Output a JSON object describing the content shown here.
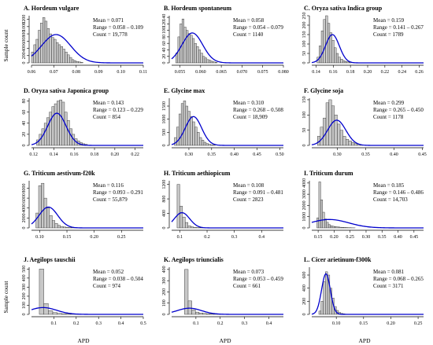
{
  "figure": {
    "ylabel": "Sample count",
    "xlabel": "APD",
    "bar_color": "#c8c8c8",
    "curve_color": "#0000cc"
  },
  "chart_data": [
    {
      "type": "histogram",
      "title": "A. Hordeum vulgare",
      "stats": [
        "Mean = 0.071",
        "Range = 0.058 – 0.109",
        "Count = 19,778"
      ],
      "xlim": [
        0.06,
        0.11
      ],
      "xticks": [
        0.06,
        0.07,
        0.08,
        0.09,
        0.1,
        0.11
      ],
      "xtick_labels": [
        "0.06",
        "0.07",
        "0.08",
        "0.09",
        "0.10",
        "0.11"
      ],
      "ylim": [
        0,
        1300
      ],
      "yticks": [
        0,
        200,
        400,
        600,
        800,
        1000,
        1200
      ],
      "ytick_labels": [
        "0",
        "200",
        "400",
        "600",
        "800",
        "1000",
        "1200"
      ],
      "bin_start": 0.059,
      "bin_width": 0.001,
      "values": [
        150,
        300,
        500,
        650,
        900,
        1100,
        1250,
        1150,
        950,
        800,
        700,
        650,
        560,
        500,
        450,
        380,
        300,
        220,
        150,
        90,
        60,
        40,
        25,
        15
      ],
      "fit": {
        "mean": 0.071,
        "sd": 0.0065,
        "peak": 780
      }
    },
    {
      "type": "histogram",
      "title": "B. Hordeum spontaneum",
      "stats": [
        "Mean = 0.058",
        "Range = 0.054 – 0.079",
        "Count = 1140"
      ],
      "xlim": [
        0.053,
        0.08
      ],
      "xticks": [
        0.055,
        0.06,
        0.065,
        0.07,
        0.075,
        0.08
      ],
      "xtick_labels": [
        "0.055",
        "0.060",
        "0.065",
        "0.070",
        "0.075",
        "0.080"
      ],
      "ylim": [
        0,
        145
      ],
      "yticks": [
        0,
        20,
        40,
        60,
        80,
        100,
        120,
        140
      ],
      "ytick_labels": [
        "0",
        "20",
        "40",
        "60",
        "80",
        "100",
        "120",
        "140"
      ],
      "bin_start": 0.054,
      "bin_width": 0.0005,
      "values": [
        30,
        80,
        120,
        135,
        110,
        100,
        90,
        85,
        75,
        60,
        50,
        40,
        30,
        20,
        15,
        10,
        8,
        5,
        3,
        2
      ],
      "fit": {
        "mean": 0.058,
        "sd": 0.0025,
        "peak": 92
      }
    },
    {
      "type": "histogram",
      "title": "C. Oryza sativa Indica group",
      "stats": [
        "Mean = 0.159",
        "Range = 0.141 – 0.267",
        "Count = 1789"
      ],
      "xlim": [
        0.135,
        0.265
      ],
      "xticks": [
        0.14,
        0.16,
        0.18,
        0.2,
        0.22,
        0.24,
        0.26
      ],
      "xtick_labels": [
        "0.14",
        "0.16",
        "0.18",
        "0.20",
        "0.22",
        "0.24",
        "0.26"
      ],
      "ylim": [
        0,
        250
      ],
      "yticks": [
        0,
        50,
        100,
        150,
        200,
        250
      ],
      "ytick_labels": [
        "0",
        "50",
        "100",
        "150",
        "200",
        "250"
      ],
      "bin_start": 0.141,
      "bin_width": 0.0025,
      "values": [
        30,
        90,
        170,
        230,
        250,
        210,
        160,
        120,
        80,
        50,
        30,
        20,
        12,
        8,
        5,
        3
      ],
      "fit": {
        "mean": 0.159,
        "sd": 0.008,
        "peak": 150
      }
    },
    {
      "type": "histogram",
      "title": "D. Oryza sativa Japonica group",
      "stats": [
        "Mean = 0.143",
        "Range = 0.123 – 0.229",
        "Count = 854"
      ],
      "xlim": [
        0.118,
        0.228
      ],
      "xticks": [
        0.12,
        0.14,
        0.16,
        0.18,
        0.2,
        0.22
      ],
      "xtick_labels": [
        "0.12",
        "0.14",
        "0.16",
        "0.18",
        "0.20",
        "0.22"
      ],
      "ylim": [
        0,
        85
      ],
      "yticks": [
        0,
        20,
        40,
        60,
        80
      ],
      "ytick_labels": [
        "0",
        "20",
        "40",
        "60",
        "80"
      ],
      "bin_start": 0.123,
      "bin_width": 0.0025,
      "values": [
        10,
        20,
        30,
        40,
        50,
        60,
        70,
        75,
        80,
        82,
        78,
        60,
        45,
        30,
        20,
        12,
        8,
        5,
        3,
        2
      ],
      "fit": {
        "mean": 0.143,
        "sd": 0.009,
        "peak": 58
      }
    },
    {
      "type": "histogram",
      "title": "E. Glycine max",
      "stats": [
        "Mean = 0.310",
        "Range = 0.268 – 0.508",
        "Count = 18,909"
      ],
      "xlim": [
        0.262,
        0.508
      ],
      "xticks": [
        0.3,
        0.35,
        0.4,
        0.45,
        0.5
      ],
      "xtick_labels": [
        "0.30",
        "0.35",
        "0.40",
        "0.45",
        "0.50"
      ],
      "ylim": [
        0,
        1800
      ],
      "yticks": [
        0,
        500,
        1000,
        1500
      ],
      "ytick_labels": [
        "0",
        "500",
        "1000",
        "1500"
      ],
      "bin_start": 0.268,
      "bin_width": 0.005,
      "values": [
        300,
        700,
        1200,
        1600,
        1700,
        1500,
        1300,
        1100,
        900,
        700,
        500,
        300,
        200,
        120,
        70,
        40,
        25,
        15
      ],
      "fit": {
        "mean": 0.31,
        "sd": 0.018,
        "peak": 1100
      }
    },
    {
      "type": "histogram",
      "title": "F. Glycine soja",
      "stats": [
        "Mean = 0.299",
        "Range = 0.265 – 0.450",
        "Count = 1178"
      ],
      "xlim": [
        0.255,
        0.452
      ],
      "xticks": [
        0.3,
        0.35,
        0.4,
        0.45
      ],
      "xtick_labels": [
        "0.30",
        "0.35",
        "0.40",
        "0.45"
      ],
      "ylim": [
        0,
        155
      ],
      "yticks": [
        0,
        50,
        100,
        150
      ],
      "ytick_labels": [
        "0",
        "50",
        "100",
        "150"
      ],
      "bin_start": 0.265,
      "bin_width": 0.005,
      "values": [
        30,
        60,
        90,
        140,
        150,
        130,
        100,
        70,
        50,
        30,
        20,
        15,
        10,
        6,
        4,
        2
      ],
      "fit": {
        "mean": 0.299,
        "sd": 0.016,
        "peak": 83
      }
    },
    {
      "type": "histogram",
      "title": "G. Triticum aestivum-f20k",
      "stats": [
        "Mean = 0.116",
        "Range = 0.093 – 0.291",
        "Count = 55,879"
      ],
      "xlim": [
        0.085,
        0.29
      ],
      "xticks": [
        0.1,
        0.15,
        0.2,
        0.25
      ],
      "xtick_labels": [
        "0.10",
        "0.15",
        "0.20",
        "0.25"
      ],
      "ylim": [
        0,
        9500
      ],
      "yticks": [
        0,
        2000,
        4000,
        6000,
        8000
      ],
      "ytick_labels": [
        "0",
        "2000",
        "4000",
        "6000",
        "8000"
      ],
      "bin_start": 0.093,
      "bin_width": 0.005,
      "values": [
        3000,
        8500,
        9000,
        6000,
        4000,
        2500,
        1500,
        900,
        500,
        300,
        180,
        100,
        60,
        30,
        15,
        8
      ],
      "fit": {
        "mean": 0.116,
        "sd": 0.017,
        "peak": 4200
      }
    },
    {
      "type": "histogram",
      "title": "H. Triticum aethiopicum",
      "stats": [
        "Mean = 0.108",
        "Range = 0.091 – 0.481",
        "Count = 2823"
      ],
      "xlim": [
        0.07,
        0.48
      ],
      "xticks": [
        0.1,
        0.2,
        0.3,
        0.4
      ],
      "xtick_labels": [
        "0.1",
        "0.2",
        "0.3",
        "0.4"
      ],
      "ylim": [
        0,
        1300
      ],
      "yticks": [
        0,
        400,
        800,
        1200
      ],
      "ytick_labels": [
        "0",
        "400",
        "800",
        "1200"
      ],
      "bin_start": 0.09,
      "bin_width": 0.01,
      "values": [
        1200,
        600,
        300,
        150,
        60,
        30,
        15,
        8,
        5,
        3
      ],
      "fit": {
        "mean": 0.108,
        "sd": 0.028,
        "peak": 420
      }
    },
    {
      "type": "histogram",
      "title": "I. Triticum durum",
      "stats": [
        "Mean = 0.185",
        "Range = 0.146 – 0.486",
        "Count = 14,703"
      ],
      "xlim": [
        0.13,
        0.48
      ],
      "xticks": [
        0.15,
        0.2,
        0.25,
        0.3,
        0.35,
        0.4,
        0.45
      ],
      "xtick_labels": [
        "0.15",
        "0.20",
        "0.25",
        "0.30",
        "0.35",
        "0.40",
        "0.45"
      ],
      "ylim": [
        0,
        4200
      ],
      "yticks": [
        0,
        1000,
        2000,
        3000,
        4000
      ],
      "ytick_labels": [
        "0",
        "1000",
        "2000",
        "3000",
        "4000"
      ],
      "bin_start": 0.146,
      "bin_width": 0.006,
      "values": [
        900,
        4100,
        2500,
        1400,
        800,
        500,
        300,
        200,
        150,
        120,
        100,
        80,
        60,
        50,
        40,
        30,
        20,
        15,
        10,
        8
      ],
      "fit": {
        "mean": 0.185,
        "sd": 0.06,
        "peak": 750
      }
    },
    {
      "type": "histogram",
      "title": "J. Aegilops tauschii",
      "stats": [
        "Mean = 0.052",
        "Range = 0.038 – 0.504",
        "Count = 974"
      ],
      "xlim": [
        0.0,
        0.5
      ],
      "xticks": [
        0.1,
        0.2,
        0.3,
        0.4,
        0.5
      ],
      "xtick_labels": [
        "0.1",
        "0.2",
        "0.3",
        "0.4",
        "0.5"
      ],
      "ylim": [
        0,
        520
      ],
      "yticks": [
        0,
        100,
        200,
        300,
        400,
        500
      ],
      "ytick_labels": [
        "0",
        "100",
        "200",
        "300",
        "400",
        "500"
      ],
      "bin_start": 0.035,
      "bin_width": 0.02,
      "values": [
        500,
        120,
        40,
        20,
        10,
        6,
        4,
        3,
        2,
        2,
        1,
        1,
        1,
        1
      ],
      "fit": {
        "mean": 0.052,
        "sd": 0.06,
        "peak": 75
      }
    },
    {
      "type": "histogram",
      "title": "K. Aegilops triuncialis",
      "stats": [
        "Mean = 0.073",
        "Range = 0.053 – 0.459",
        "Count = 661"
      ],
      "xlim": [
        0.0,
        0.46
      ],
      "xticks": [
        0.1,
        0.2,
        0.3,
        0.4
      ],
      "xtick_labels": [
        "0.1",
        "0.2",
        "0.3",
        "0.4"
      ],
      "ylim": [
        0,
        420
      ],
      "yticks": [
        0,
        100,
        200,
        300,
        400
      ],
      "ytick_labels": [
        "0",
        "100",
        "200",
        "300",
        "400"
      ],
      "bin_start": 0.053,
      "bin_width": 0.015,
      "values": [
        400,
        120,
        40,
        20,
        12,
        8,
        5,
        4,
        3,
        2,
        2,
        1,
        1,
        1
      ],
      "fit": {
        "mean": 0.073,
        "sd": 0.05,
        "peak": 55
      }
    },
    {
      "type": "histogram",
      "title": "L. Cicer arietinum-f300k",
      "stats": [
        "Mean = 0.081",
        "Range = 0.068 – 0.265",
        "Count = 3171"
      ],
      "xlim": [
        0.055,
        0.26
      ],
      "xticks": [
        0.1,
        0.15,
        0.2,
        0.25
      ],
      "xtick_labels": [
        "0.10",
        "0.15",
        "0.20",
        "0.25"
      ],
      "ylim": [
        0,
        720
      ],
      "yticks": [
        0,
        200,
        400,
        600
      ],
      "ytick_labels": [
        "0",
        "200",
        "400",
        "600"
      ],
      "bin_start": 0.068,
      "bin_width": 0.004,
      "values": [
        50,
        200,
        500,
        650,
        600,
        400,
        250,
        120,
        60,
        30,
        15,
        8,
        4,
        2
      ],
      "fit": {
        "mean": 0.081,
        "sd": 0.008,
        "peak": 620
      }
    }
  ]
}
